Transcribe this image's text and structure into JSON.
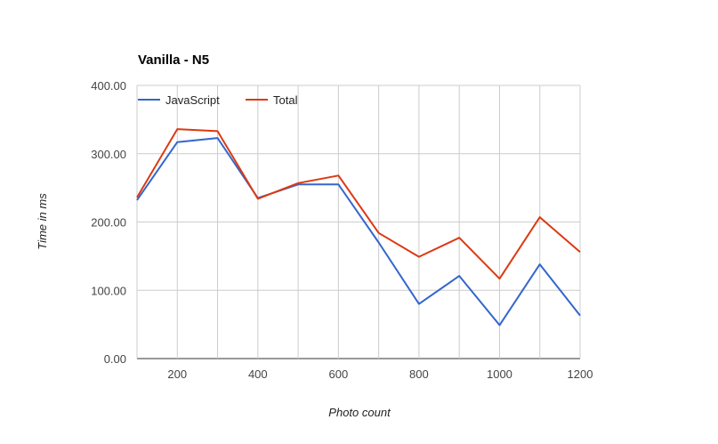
{
  "colors": {
    "javascript": "#3366cc",
    "total": "#dc3912",
    "grid": "#cccccc"
  },
  "chart_data": {
    "type": "line",
    "title": "Vanilla - N5",
    "xlabel": "Photo count",
    "ylabel": "Time in ms",
    "x": [
      100,
      200,
      300,
      400,
      500,
      600,
      700,
      800,
      900,
      1000,
      1100,
      1200
    ],
    "xlim": [
      100,
      1200
    ],
    "xticks": [
      200,
      400,
      600,
      800,
      1000,
      1200
    ],
    "xtick_labels": [
      "200",
      "400",
      "600",
      "800",
      "1000",
      "1200"
    ],
    "ylim": [
      0,
      400
    ],
    "yticks": [
      0,
      100,
      200,
      300,
      400
    ],
    "ytick_labels": [
      "0.00",
      "100.00",
      "200.00",
      "300.00",
      "400.00"
    ],
    "grid": true,
    "legend_position": "top-left",
    "series": [
      {
        "name": "JavaScript",
        "color": "#3366cc",
        "values": [
          232,
          317,
          323,
          235,
          255,
          255,
          170,
          80,
          121,
          49,
          138,
          63
        ]
      },
      {
        "name": "Total",
        "color": "#dc3912",
        "values": [
          236,
          336,
          333,
          234,
          257,
          268,
          184,
          149,
          177,
          117,
          207,
          156
        ]
      }
    ]
  }
}
